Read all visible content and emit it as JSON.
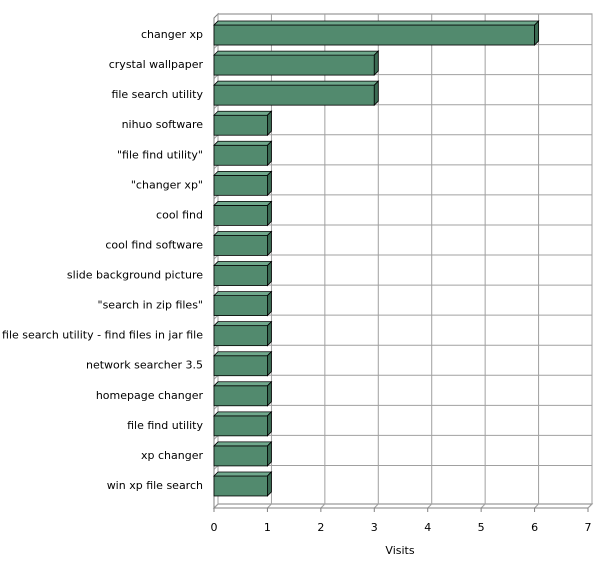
{
  "chart_data": {
    "type": "bar",
    "orientation": "horizontal",
    "categories": [
      "changer xp",
      "crystal wallpaper",
      "file search utility",
      "nihuo software",
      "\"file find utility\"",
      "\"changer xp\"",
      "cool find",
      "cool find software",
      "slide background picture",
      "\"search in zip files\"",
      "file search utility - find files in jar file",
      "network searcher 3.5",
      "homepage changer",
      "file find utility",
      "xp changer",
      "win xp file search"
    ],
    "values": [
      6,
      3,
      3,
      1,
      1,
      1,
      1,
      1,
      1,
      1,
      1,
      1,
      1,
      1,
      1,
      1
    ],
    "color": "#528a6e",
    "x_label": "Visits",
    "xlim": [
      0,
      7
    ],
    "xticks": [
      0,
      1,
      2,
      3,
      4,
      5,
      6,
      7
    ],
    "grid": true
  }
}
